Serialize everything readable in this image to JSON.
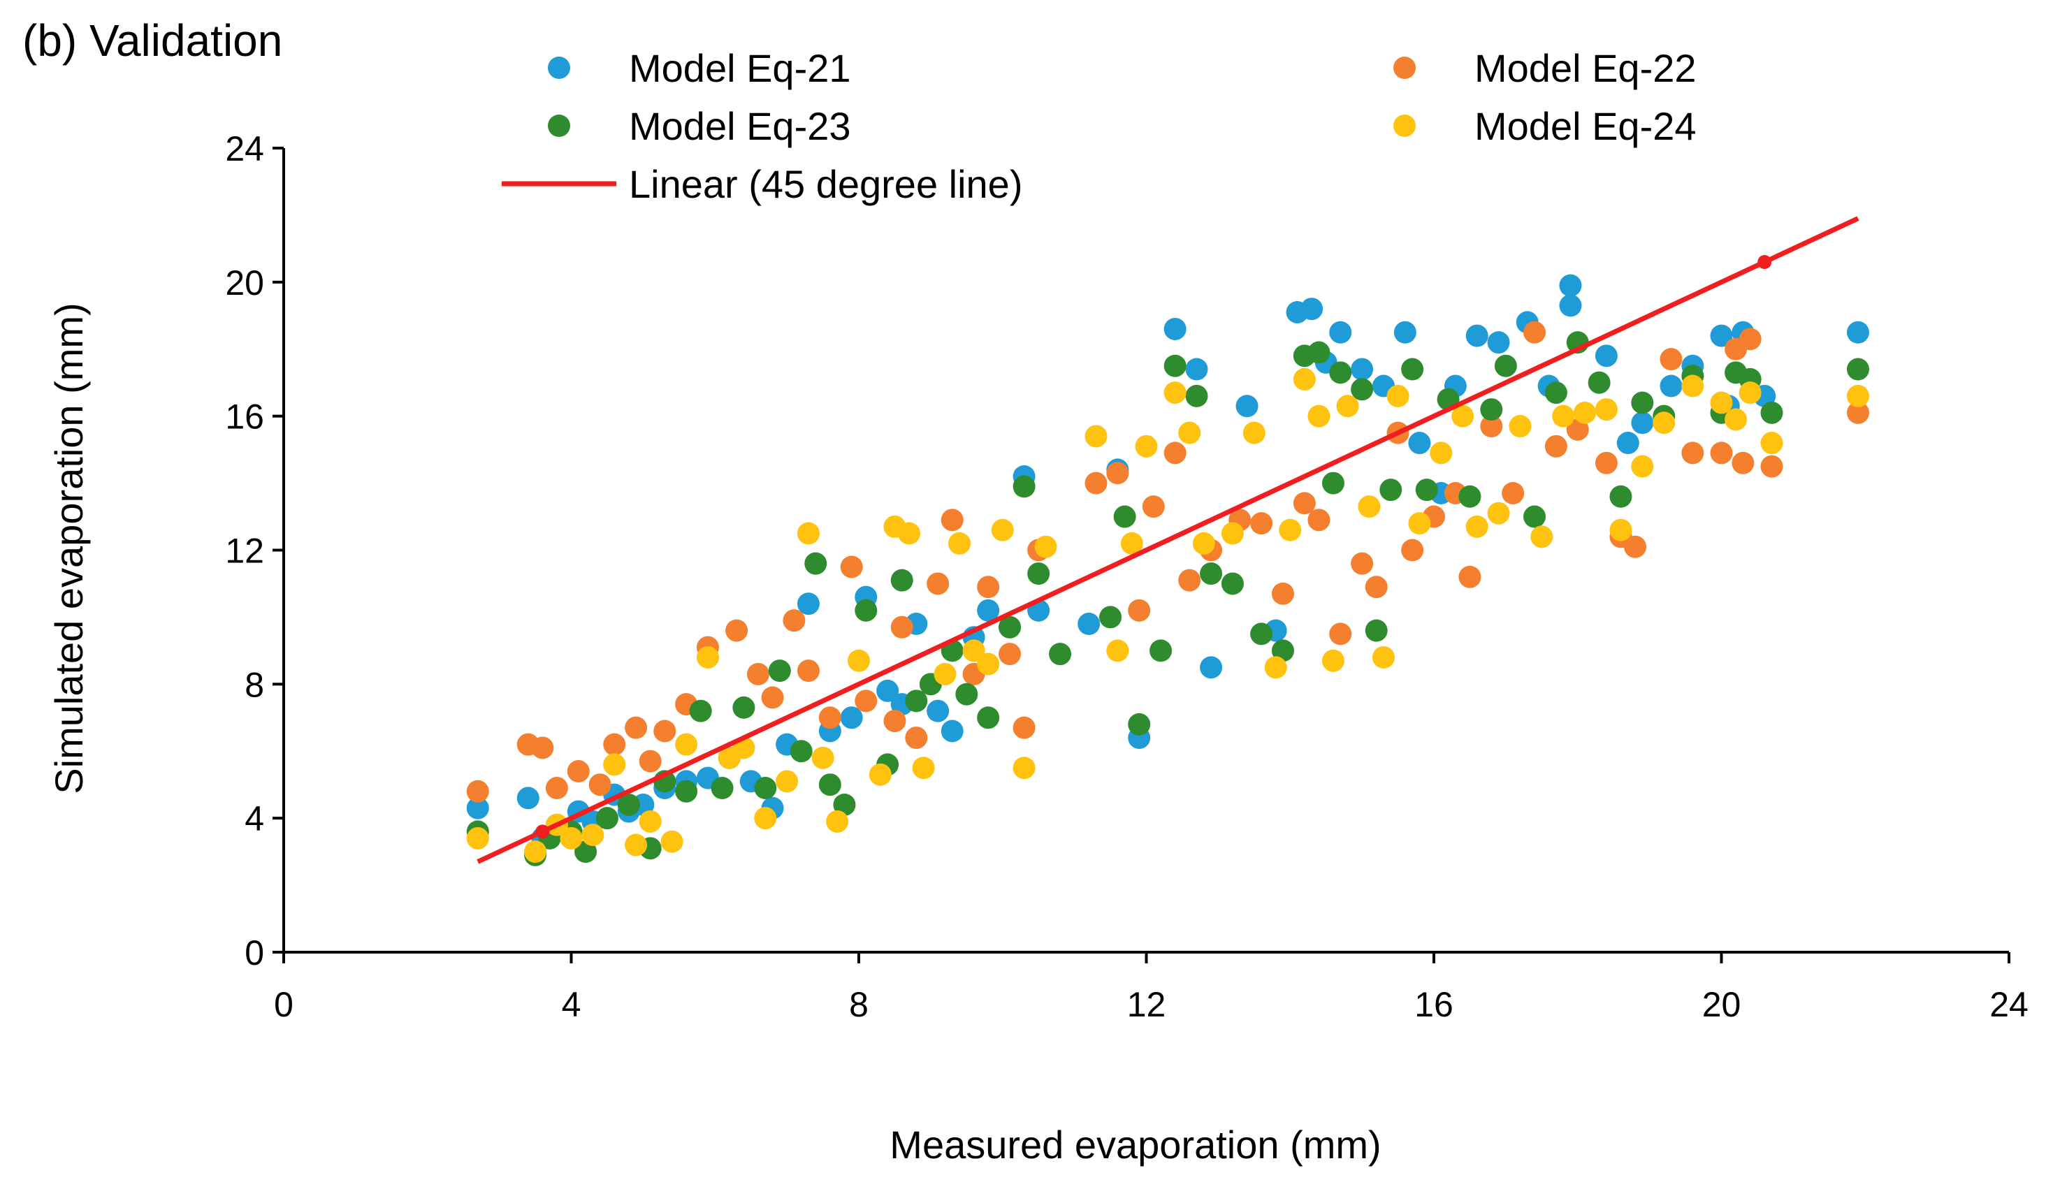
{
  "chart_data": {
    "type": "scatter",
    "title": "(b) Validation",
    "xlabel": "Measured evaporation (mm)",
    "ylabel": "Simulated evaporation (mm)",
    "xlim": [
      0,
      24
    ],
    "ylim": [
      0,
      24
    ],
    "xticks": [
      "0",
      "4",
      "8",
      "12",
      "16",
      "20",
      "24"
    ],
    "yticks": [
      "0",
      "4",
      "8",
      "12",
      "16",
      "20",
      "24"
    ],
    "grid": false,
    "legend_position": "top",
    "series": [
      {
        "name": "Model Eq-21",
        "color": "#1f9bd7",
        "points": [
          [
            2.7,
            4.3
          ],
          [
            3.4,
            4.6
          ],
          [
            3.6,
            3.4
          ],
          [
            3.8,
            3.8
          ],
          [
            4.1,
            4.2
          ],
          [
            4.3,
            3.9
          ],
          [
            4.6,
            4.7
          ],
          [
            4.8,
            4.2
          ],
          [
            5.0,
            4.4
          ],
          [
            5.3,
            4.9
          ],
          [
            5.6,
            5.1
          ],
          [
            5.9,
            5.2
          ],
          [
            6.2,
            5.8
          ],
          [
            6.5,
            5.1
          ],
          [
            6.8,
            4.3
          ],
          [
            7.0,
            6.2
          ],
          [
            7.3,
            10.4
          ],
          [
            7.6,
            6.6
          ],
          [
            7.9,
            7.0
          ],
          [
            8.1,
            10.6
          ],
          [
            8.4,
            7.8
          ],
          [
            8.6,
            7.4
          ],
          [
            8.8,
            9.8
          ],
          [
            9.1,
            7.2
          ],
          [
            9.3,
            6.6
          ],
          [
            9.6,
            9.4
          ],
          [
            9.8,
            10.2
          ],
          [
            10.1,
            9.7
          ],
          [
            10.3,
            14.2
          ],
          [
            10.5,
            10.2
          ],
          [
            11.2,
            9.8
          ],
          [
            11.6,
            14.4
          ],
          [
            11.9,
            6.4
          ],
          [
            12.4,
            18.6
          ],
          [
            12.7,
            17.4
          ],
          [
            12.9,
            8.5
          ],
          [
            13.4,
            16.3
          ],
          [
            13.8,
            9.6
          ],
          [
            14.1,
            19.1
          ],
          [
            14.3,
            19.2
          ],
          [
            14.5,
            17.6
          ],
          [
            14.7,
            18.5
          ],
          [
            15.0,
            17.4
          ],
          [
            15.3,
            16.9
          ],
          [
            15.6,
            18.5
          ],
          [
            15.8,
            15.2
          ],
          [
            16.1,
            13.7
          ],
          [
            16.3,
            16.9
          ],
          [
            16.6,
            18.4
          ],
          [
            16.9,
            18.2
          ],
          [
            17.3,
            18.8
          ],
          [
            17.6,
            16.9
          ],
          [
            17.9,
            19.9
          ],
          [
            17.9,
            19.3
          ],
          [
            18.4,
            17.8
          ],
          [
            18.7,
            15.2
          ],
          [
            18.9,
            15.8
          ],
          [
            19.3,
            16.9
          ],
          [
            19.6,
            17.5
          ],
          [
            20.0,
            18.4
          ],
          [
            20.1,
            16.3
          ],
          [
            20.3,
            18.5
          ],
          [
            20.6,
            16.6
          ],
          [
            21.9,
            18.5
          ]
        ]
      },
      {
        "name": "Model Eq-22",
        "color": "#f47f2f",
        "points": [
          [
            2.7,
            4.8
          ],
          [
            3.4,
            6.2
          ],
          [
            3.6,
            6.1
          ],
          [
            3.8,
            4.9
          ],
          [
            4.1,
            5.4
          ],
          [
            4.4,
            5.0
          ],
          [
            4.6,
            6.2
          ],
          [
            4.9,
            6.7
          ],
          [
            5.1,
            5.7
          ],
          [
            5.3,
            6.6
          ],
          [
            5.6,
            7.4
          ],
          [
            5.9,
            9.1
          ],
          [
            6.3,
            9.6
          ],
          [
            6.6,
            8.3
          ],
          [
            6.8,
            7.6
          ],
          [
            7.1,
            9.9
          ],
          [
            7.3,
            8.4
          ],
          [
            7.6,
            7.0
          ],
          [
            7.9,
            11.5
          ],
          [
            8.1,
            7.5
          ],
          [
            8.5,
            6.9
          ],
          [
            8.6,
            9.7
          ],
          [
            8.8,
            6.4
          ],
          [
            9.1,
            11.0
          ],
          [
            9.3,
            12.9
          ],
          [
            9.6,
            8.3
          ],
          [
            9.8,
            10.9
          ],
          [
            10.1,
            8.9
          ],
          [
            10.3,
            6.7
          ],
          [
            10.5,
            12.0
          ],
          [
            11.3,
            14.0
          ],
          [
            11.6,
            14.3
          ],
          [
            11.9,
            10.2
          ],
          [
            12.1,
            13.3
          ],
          [
            12.4,
            14.9
          ],
          [
            12.6,
            11.1
          ],
          [
            12.9,
            12.0
          ],
          [
            13.3,
            12.9
          ],
          [
            13.6,
            12.8
          ],
          [
            13.9,
            10.7
          ],
          [
            14.2,
            13.4
          ],
          [
            14.4,
            12.9
          ],
          [
            14.7,
            9.5
          ],
          [
            15.0,
            11.6
          ],
          [
            15.2,
            10.9
          ],
          [
            15.5,
            15.5
          ],
          [
            15.7,
            12.0
          ],
          [
            16.0,
            13.0
          ],
          [
            16.3,
            13.7
          ],
          [
            16.5,
            11.2
          ],
          [
            16.8,
            15.7
          ],
          [
            17.1,
            13.7
          ],
          [
            17.4,
            18.5
          ],
          [
            17.7,
            15.1
          ],
          [
            18.0,
            15.6
          ],
          [
            18.4,
            14.6
          ],
          [
            18.6,
            12.4
          ],
          [
            18.8,
            12.1
          ],
          [
            19.3,
            17.7
          ],
          [
            19.6,
            14.9
          ],
          [
            20.0,
            14.9
          ],
          [
            20.2,
            18.0
          ],
          [
            20.3,
            14.6
          ],
          [
            20.4,
            18.3
          ],
          [
            20.7,
            14.5
          ],
          [
            21.9,
            16.1
          ]
        ]
      },
      {
        "name": "Model Eq-23",
        "color": "#2e8b2e",
        "points": [
          [
            2.7,
            3.6
          ],
          [
            3.5,
            2.9
          ],
          [
            3.7,
            3.4
          ],
          [
            4.0,
            3.6
          ],
          [
            4.2,
            3.0
          ],
          [
            4.5,
            4.0
          ],
          [
            4.8,
            4.4
          ],
          [
            5.1,
            3.1
          ],
          [
            5.3,
            5.1
          ],
          [
            5.6,
            4.8
          ],
          [
            5.8,
            7.2
          ],
          [
            6.1,
            4.9
          ],
          [
            6.4,
            7.3
          ],
          [
            6.7,
            4.9
          ],
          [
            6.9,
            8.4
          ],
          [
            7.2,
            6.0
          ],
          [
            7.4,
            11.6
          ],
          [
            7.6,
            5.0
          ],
          [
            7.8,
            4.4
          ],
          [
            8.1,
            10.2
          ],
          [
            8.4,
            5.6
          ],
          [
            8.6,
            11.1
          ],
          [
            8.8,
            7.5
          ],
          [
            9.0,
            8.0
          ],
          [
            9.3,
            9.0
          ],
          [
            9.5,
            7.7
          ],
          [
            9.8,
            7.0
          ],
          [
            10.1,
            9.7
          ],
          [
            10.3,
            13.9
          ],
          [
            10.5,
            11.3
          ],
          [
            10.8,
            8.9
          ],
          [
            11.5,
            10.0
          ],
          [
            11.7,
            13.0
          ],
          [
            11.9,
            6.8
          ],
          [
            12.2,
            9.0
          ],
          [
            12.4,
            17.5
          ],
          [
            12.7,
            16.6
          ],
          [
            12.9,
            11.3
          ],
          [
            13.2,
            11.0
          ],
          [
            13.6,
            9.5
          ],
          [
            13.9,
            9.0
          ],
          [
            14.2,
            17.8
          ],
          [
            14.4,
            17.9
          ],
          [
            14.6,
            14.0
          ],
          [
            14.7,
            17.3
          ],
          [
            15.0,
            16.8
          ],
          [
            15.2,
            9.6
          ],
          [
            15.4,
            13.8
          ],
          [
            15.7,
            17.4
          ],
          [
            15.9,
            13.8
          ],
          [
            16.2,
            16.5
          ],
          [
            16.5,
            13.6
          ],
          [
            16.8,
            16.2
          ],
          [
            17.0,
            17.5
          ],
          [
            17.4,
            13.0
          ],
          [
            17.7,
            16.7
          ],
          [
            18.0,
            18.2
          ],
          [
            18.3,
            17.0
          ],
          [
            18.6,
            13.6
          ],
          [
            18.9,
            16.4
          ],
          [
            19.2,
            16.0
          ],
          [
            19.6,
            17.2
          ],
          [
            20.0,
            16.1
          ],
          [
            20.2,
            17.3
          ],
          [
            20.4,
            17.1
          ],
          [
            20.7,
            16.1
          ],
          [
            21.9,
            17.4
          ]
        ]
      },
      {
        "name": "Model Eq-24",
        "color": "#ffc20e",
        "points": [
          [
            2.7,
            3.4
          ],
          [
            3.5,
            3.0
          ],
          [
            3.8,
            3.8
          ],
          [
            4.0,
            3.4
          ],
          [
            4.3,
            3.5
          ],
          [
            4.6,
            5.6
          ],
          [
            4.9,
            3.2
          ],
          [
            5.1,
            3.9
          ],
          [
            5.4,
            3.3
          ],
          [
            5.6,
            6.2
          ],
          [
            5.9,
            8.8
          ],
          [
            6.2,
            5.8
          ],
          [
            6.4,
            6.1
          ],
          [
            6.7,
            4.0
          ],
          [
            7.0,
            5.1
          ],
          [
            7.3,
            12.5
          ],
          [
            7.5,
            5.8
          ],
          [
            7.7,
            3.9
          ],
          [
            8.0,
            8.7
          ],
          [
            8.3,
            5.3
          ],
          [
            8.5,
            12.7
          ],
          [
            8.7,
            12.5
          ],
          [
            8.9,
            5.5
          ],
          [
            9.2,
            8.3
          ],
          [
            9.4,
            12.2
          ],
          [
            9.6,
            9.0
          ],
          [
            9.8,
            8.6
          ],
          [
            10.0,
            12.6
          ],
          [
            10.3,
            5.5
          ],
          [
            10.6,
            12.1
          ],
          [
            11.3,
            15.4
          ],
          [
            11.6,
            9.0
          ],
          [
            11.8,
            12.2
          ],
          [
            12.0,
            15.1
          ],
          [
            12.4,
            16.7
          ],
          [
            12.6,
            15.5
          ],
          [
            12.8,
            12.2
          ],
          [
            13.2,
            12.5
          ],
          [
            13.5,
            15.5
          ],
          [
            13.8,
            8.5
          ],
          [
            14.0,
            12.6
          ],
          [
            14.2,
            17.1
          ],
          [
            14.4,
            16.0
          ],
          [
            14.6,
            8.7
          ],
          [
            14.8,
            16.3
          ],
          [
            15.1,
            13.3
          ],
          [
            15.3,
            8.8
          ],
          [
            15.5,
            16.6
          ],
          [
            15.8,
            12.8
          ],
          [
            16.1,
            14.9
          ],
          [
            16.4,
            16.0
          ],
          [
            16.6,
            12.7
          ],
          [
            16.9,
            13.1
          ],
          [
            17.2,
            15.7
          ],
          [
            17.5,
            12.4
          ],
          [
            17.8,
            16.0
          ],
          [
            18.1,
            16.1
          ],
          [
            18.4,
            16.2
          ],
          [
            18.6,
            12.6
          ],
          [
            18.9,
            14.5
          ],
          [
            19.2,
            15.8
          ],
          [
            19.6,
            16.9
          ],
          [
            20.0,
            16.4
          ],
          [
            20.2,
            15.9
          ],
          [
            20.4,
            16.7
          ],
          [
            20.7,
            15.2
          ],
          [
            21.9,
            16.6
          ]
        ]
      },
      {
        "name": "Linear (45 degree line)",
        "type": "line",
        "color": "#f01e1e",
        "points": [
          [
            2.7,
            2.7
          ],
          [
            21.9,
            21.9
          ]
        ],
        "markers": [
          [
            3.6,
            3.6
          ],
          [
            20.6,
            20.6
          ]
        ]
      }
    ]
  }
}
